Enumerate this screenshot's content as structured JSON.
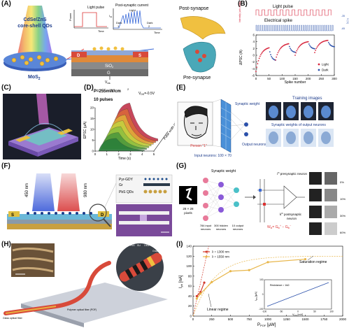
{
  "panels": {
    "A": {
      "label": "(A)",
      "qd_title_line1": "CdSe/ZnS",
      "qd_title_line2": "core-shell QDs",
      "substrate": "MoS",
      "substrate_sub": "2",
      "inset_light_pulse": "Light pulse",
      "inset_power": "Power",
      "inset_time1": "Time",
      "inset_psc_title": "Post-synaptic current",
      "inset_ids": "I",
      "inset_ids_sub": "ds",
      "inset_light": "Light",
      "inset_dark1": "Dark",
      "inset_dark1_num": "1",
      "inset_dark2": "Dark",
      "inset_dark2_num": "2",
      "inset_time2": "Time",
      "device_d": "D",
      "device_s": "S",
      "device_sio2": "SiO",
      "device_sio2_sub": "2",
      "device_g": "G",
      "gate": "V",
      "gate_sub": "gs",
      "post_synapse": "Post-synapse",
      "pre_synapse": "Pre-synapse"
    },
    "B": {
      "label": "(B)",
      "light_pulse": "Light pulse",
      "electrical_spike": "Electrical spike",
      "y_top_label": "Intensity (arb.units)",
      "y_right_label": "V (V)",
      "y_right_ticks": [
        "-35",
        "-65"
      ],
      "y_label": "ΔPSC (A)",
      "x_label": "Spike number",
      "legend_light": "Light",
      "legend_dark": "Dark",
      "chart_data": {
        "type": "scatter",
        "x_ticks": [
          "0",
          "50",
          "100",
          "150",
          "200",
          "250",
          "300"
        ],
        "xlim": [
          0,
          300
        ],
        "y_ticks": [
          "-6",
          "-4",
          "-2",
          "0",
          "2",
          "4",
          "6"
        ],
        "ylim": [
          -6,
          6
        ],
        "series": [
          {
            "name": "Light",
            "color": "#d7263d"
          },
          {
            "name": "Dark",
            "color": "#2b50aa"
          }
        ],
        "cycles": [
          {
            "start": 0,
            "peak": 50,
            "end": 75,
            "peak_value": 2.2,
            "base_value": -4.8
          },
          {
            "start": 75,
            "peak": 125,
            "end": 150,
            "peak_value": 3.4,
            "base_value": -1.4
          },
          {
            "start": 150,
            "peak": 200,
            "end": 225,
            "peak_value": 4.0,
            "base_value": 0.0
          },
          {
            "start": 225,
            "peak": 275,
            "end": 300,
            "peak_value": 4.4,
            "base_value": 0.8
          }
        ]
      }
    },
    "C": {
      "label": "(C)"
    },
    "D": {
      "label": "(D)",
      "power": "P=255mW/cm",
      "power_sup": "2",
      "vds": "V",
      "vds_sub": "DS",
      "vds_val": "=-0.5V",
      "pulses": "10 pulses",
      "y_label": "EPSC (μA)",
      "x_label": "Time (s)",
      "z_label": "Pulse width (s)",
      "chart_data": {
        "type": "area",
        "x_ticks": [
          "0",
          "1",
          "2",
          "3",
          "4",
          "5"
        ],
        "xlim": [
          0,
          5
        ],
        "y_ticks": [
          "0",
          "5",
          "10",
          "15",
          "20"
        ],
        "ylim": [
          0,
          20
        ],
        "curves": [
          {
            "color": "#2a7f3a",
            "peak": 6,
            "offset": 0.0
          },
          {
            "color": "#4f9a3c",
            "peak": 8,
            "offset": 0.4
          },
          {
            "color": "#8fbf40",
            "peak": 10,
            "offset": 0.8
          },
          {
            "color": "#c4cf3f",
            "peak": 12,
            "offset": 1.2
          },
          {
            "color": "#e0a93a",
            "peak": 14,
            "offset": 1.6
          },
          {
            "color": "#d9673a",
            "peak": 16,
            "offset": 2.0
          },
          {
            "color": "#c2344a",
            "peak": 18,
            "offset": 2.4
          }
        ]
      }
    },
    "E": {
      "label": "(E)",
      "synaptic_weight": "Synaptic weight",
      "output_neurons": "Output neurons",
      "person": "Person \"1\"",
      "input_neurons": "Input neurons: 100 × 70",
      "training_images": "Training images",
      "weights_title": "Synaptic weights of output neurons"
    },
    "F": {
      "label": "(F)",
      "wl1": "450 nm",
      "wl2": "980 nm",
      "s": "S",
      "d": "D",
      "layer1": "Pyr-GDY",
      "layer2": "Gr",
      "layer3": "PbS QDs"
    },
    "G": {
      "label": "(G)",
      "pixels": "28 × 28",
      "pixels2": "pixels",
      "synaptic_weight": "Synaptic weight",
      "input_neurons": "784 input",
      "input_neurons2": "neurons",
      "hidden_neurons": "300 hidden",
      "hidden_neurons2": "neurons",
      "output_neurons": "10 output",
      "output_neurons2": "neurons",
      "pre_neuron": "i",
      "pre_neuron_sup": "th",
      "pre_neuron_text": " presynaptic neuron",
      "post_neuron": "k",
      "post_neuron_sup": "th",
      "post_neuron_text": " postsynaptic",
      "post_neuron_text2": "neuron",
      "formula": "W",
      "formula_sub": "ik",
      "formula_rest": "= G",
      "formula_sub2": "ik",
      "formula_plus": "+",
      "formula_rest2": " − G",
      "formula_sub3": "ik",
      "formula_minus": "−",
      "percent_labels": [
        "0%",
        "10%",
        "30%",
        "60%"
      ]
    },
    "H": {
      "label": "(H)",
      "fiber": "Glass optical fiber",
      "pof": "Polymer optical fiber (POF)",
      "layers": [
        "PbS",
        "SU",
        "OEA",
        "Graphene"
      ]
    },
    "I": {
      "label": "(I)",
      "legend1": "λ = 1300 nm",
      "legend2": "λ = 1550 nm",
      "y_label": "I",
      "y_label_sub": "ph",
      "y_unit": " [nA]",
      "x_label": "P",
      "x_label_sub": "POF",
      "x_unit": " [μW]",
      "saturation": "Saturation regime",
      "linear": "Linear regime",
      "inset_ylabel": "I",
      "inset_ylabel_sub": "DS",
      "inset_yunit": " [μA]",
      "inset_xlabel": "V",
      "inset_xlabel_sub": "DS",
      "inset_xunit": " [mV]",
      "inset_resistance": "Resistance ≈ 1kΩ",
      "inset_x_ticks": [
        "-100",
        "-50",
        "0",
        "50",
        "100"
      ],
      "inset_y_ticks": [
        "-100",
        "0",
        "100"
      ],
      "chart_data": {
        "type": "line",
        "x_ticks": [
          "0",
          "250",
          "500",
          "750",
          "1000",
          "1250",
          "1500",
          "1750",
          "2000"
        ],
        "xlim": [
          0,
          2000
        ],
        "y_ticks": [
          "0",
          "20",
          "40",
          "60",
          "80",
          "100",
          "120",
          "140"
        ],
        "ylim": [
          0,
          140
        ],
        "series": [
          {
            "name": "λ = 1300 nm",
            "color": "#d33a2c",
            "x": [
              50,
              100,
              150
            ],
            "y": [
              40,
              48,
              67
            ]
          },
          {
            "name": "λ = 1550 nm",
            "color": "#e8b64a",
            "x": [
              50,
              100,
              250,
              500,
              750,
              1000,
              1500
            ],
            "y": [
              35,
              45,
              68,
              90,
              92,
              108,
              114
            ]
          }
        ]
      }
    }
  }
}
